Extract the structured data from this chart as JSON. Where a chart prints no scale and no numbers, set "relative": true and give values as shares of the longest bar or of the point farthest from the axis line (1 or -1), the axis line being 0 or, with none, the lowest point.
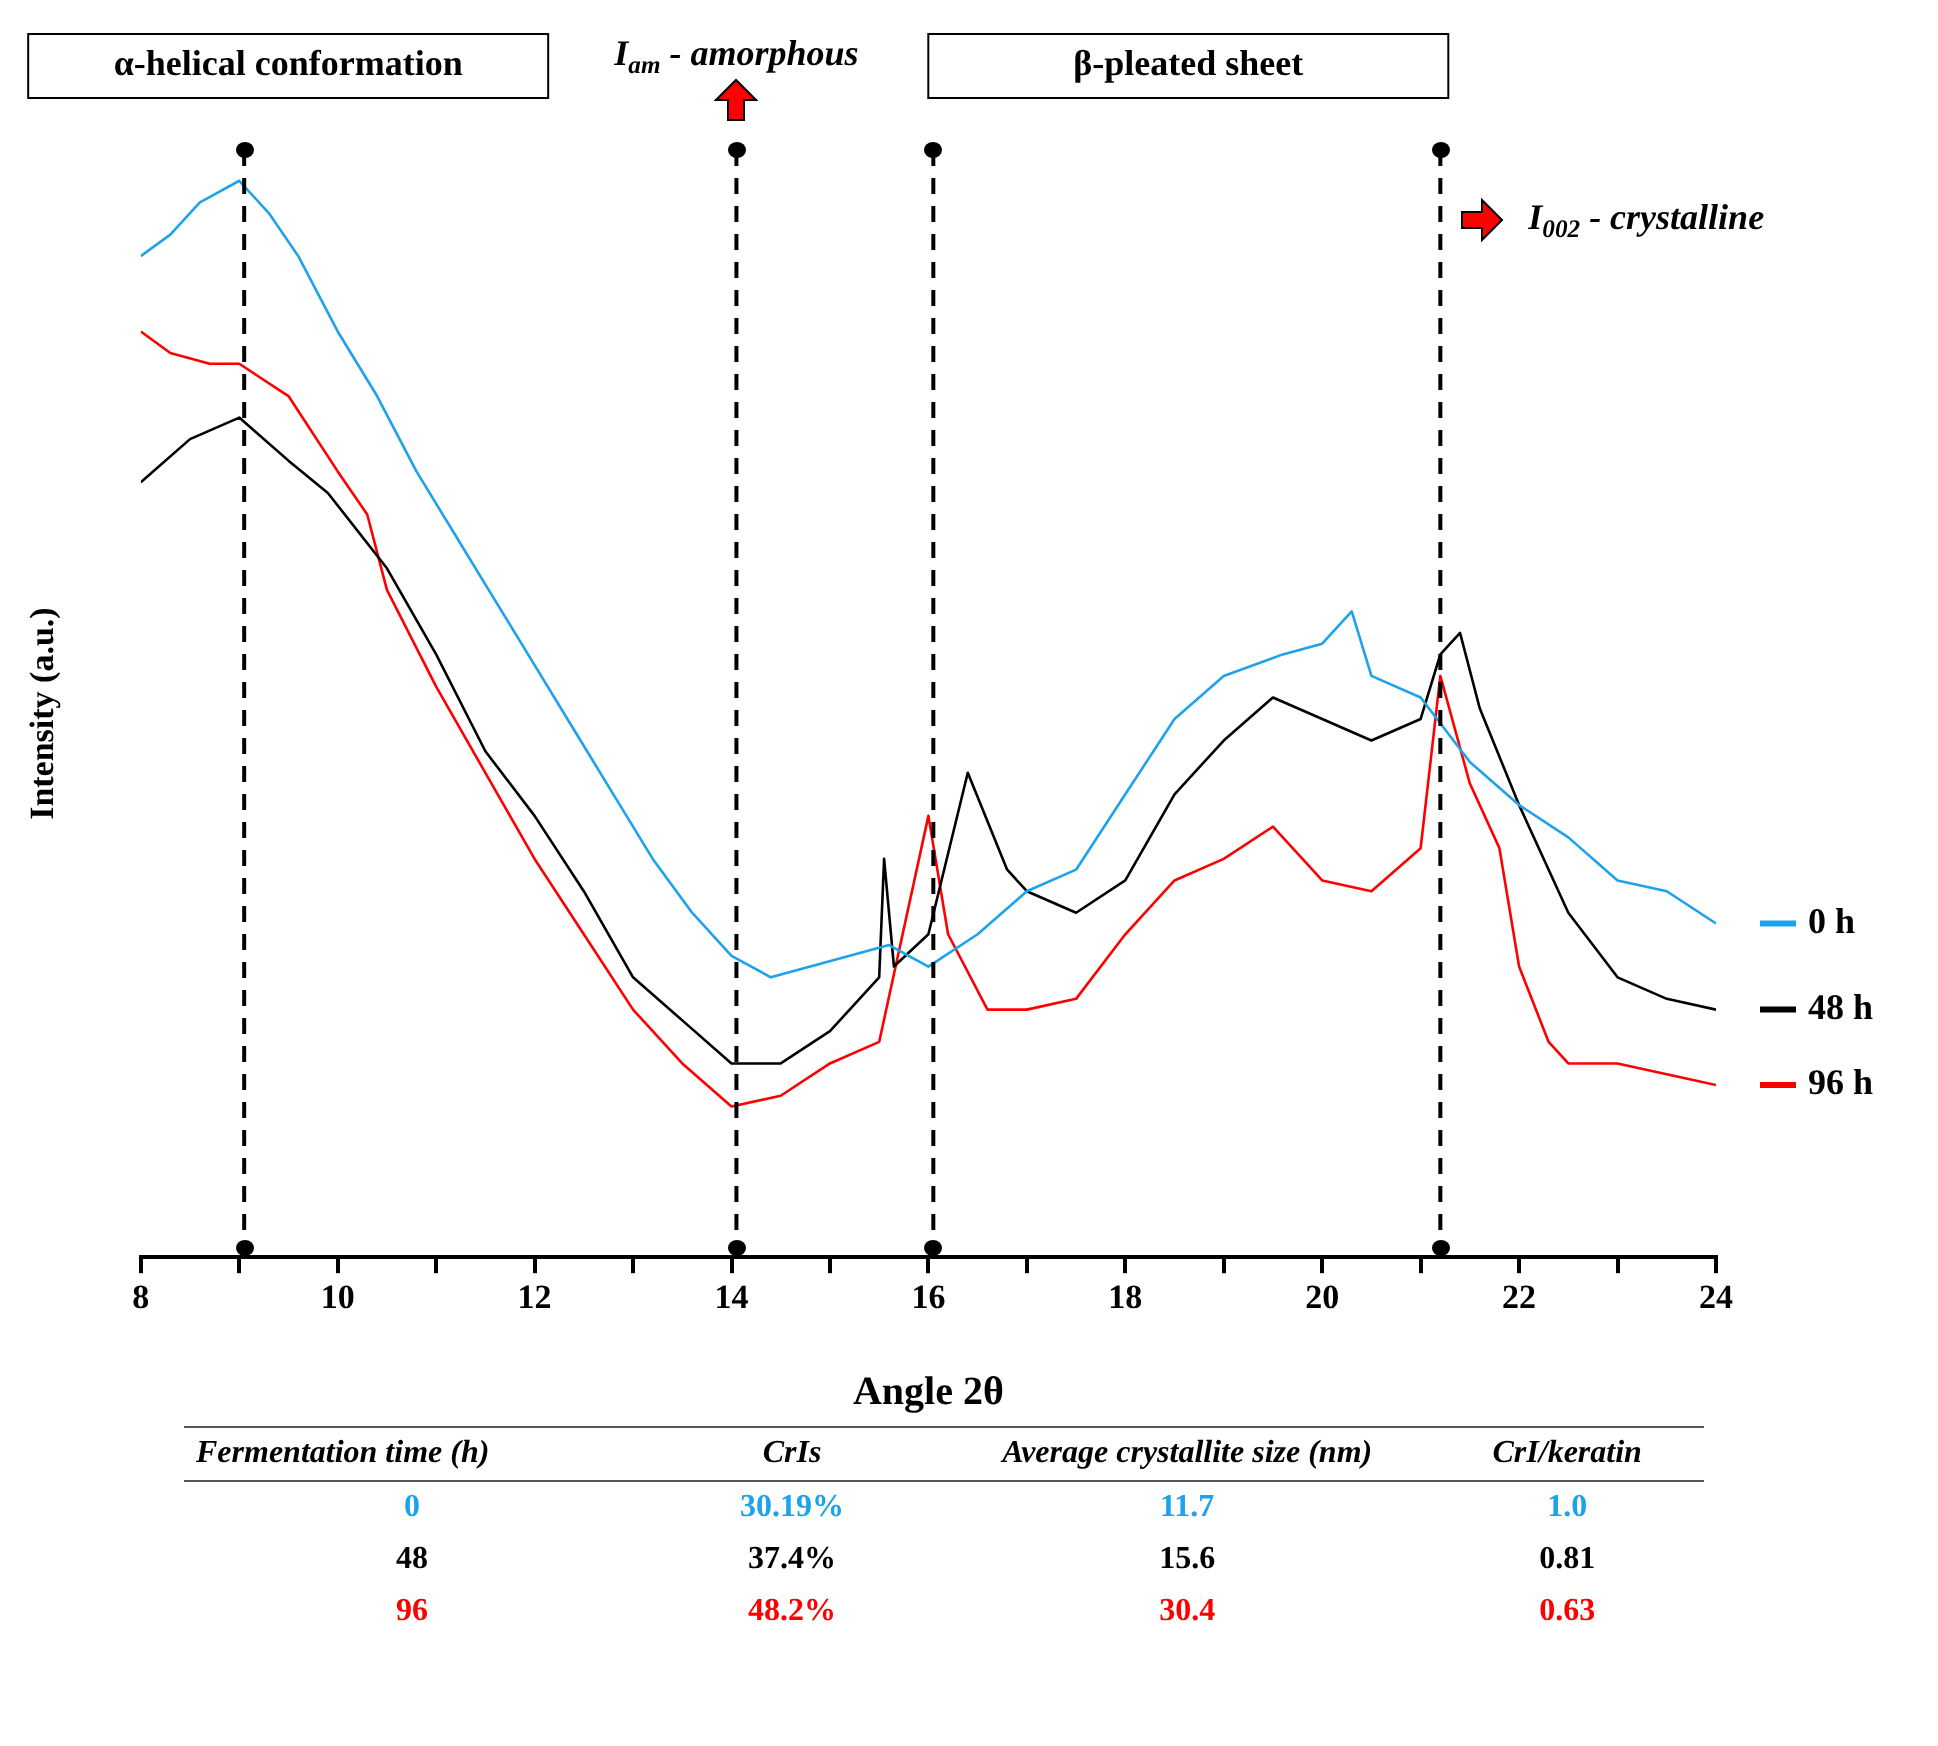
{
  "chart_data": [
    {
      "type": "line",
      "xlabel": "Angle 2θ",
      "ylabel": "Intensity (a.u.)",
      "relative": true,
      "xlim": [
        8,
        24
      ],
      "xticks": [
        8,
        {
          "value": 9,
          "label": null
        },
        10,
        {
          "value": 11,
          "label": null
        },
        12,
        {
          "value": 13,
          "label": null
        },
        14,
        {
          "value": 15,
          "label": null
        },
        16,
        {
          "value": 17,
          "label": null
        },
        18,
        {
          "value": 19,
          "label": null
        },
        20,
        {
          "value": 21,
          "label": null
        },
        22,
        {
          "value": 23,
          "label": null
        },
        24
      ],
      "legend": "right",
      "marker": "none",
      "line_style": "solid",
      "tick_labels": "x",
      "annotations": [
        "β-pleated sheet"
      ],
      "ref_lines": [
        {
          "axis": "x",
          "value": 9.05,
          "label": "α-helical conformation",
          "line_style": "dashed",
          "color": "#000000"
        },
        {
          "axis": "x",
          "value": 14.05,
          "label": "I$_{am}$ - amorphous",
          "line_style": "dashed",
          "color": "#000000"
        },
        {
          "axis": "x",
          "value": 16.05,
          "line_style": "dashed",
          "color": "#000000"
        },
        {
          "axis": "x",
          "value": 21.2,
          "label": "I$_{002}$ - crystalline",
          "line_style": "dashed",
          "color": "#000000"
        }
      ],
      "series": [
        {
          "name": "0 h",
          "color": "#1ca3ec",
          "x": [
            8,
            8.3,
            8.6,
            8.8,
            9,
            9.3,
            9.6,
            10,
            10.4,
            10.8,
            11.2,
            11.6,
            12,
            12.4,
            12.8,
            13.2,
            13.6,
            14,
            14.4,
            14.8,
            15.2,
            15.6,
            16,
            16.5,
            17,
            17.5,
            18,
            18.5,
            19,
            19.6,
            20,
            20.3,
            20.5,
            21,
            21.5,
            22,
            22.5,
            23,
            23.5,
            24
          ],
          "values": [
            0.93,
            0.95,
            0.98,
            0.99,
            1.0,
            0.97,
            0.93,
            0.86,
            0.8,
            0.73,
            0.67,
            0.61,
            0.55,
            0.49,
            0.43,
            0.37,
            0.32,
            0.28,
            0.26,
            0.27,
            0.28,
            0.29,
            0.27,
            0.3,
            0.34,
            0.36,
            0.43,
            0.5,
            0.54,
            0.56,
            0.57,
            0.6,
            0.54,
            0.52,
            0.46,
            0.42,
            0.39,
            0.35,
            0.34,
            0.31
          ]
        },
        {
          "name": "48 h",
          "color": "#000000",
          "x": [
            8,
            8.5,
            9,
            9.5,
            9.9,
            10.5,
            11,
            11.5,
            12,
            12.5,
            13,
            13.5,
            14,
            14.5,
            15,
            15.5,
            15.55,
            15.65,
            16,
            16.4,
            16.8,
            17,
            17.5,
            18,
            18.5,
            19,
            19.5,
            20,
            20.5,
            21,
            21.2,
            21.4,
            21.6,
            22,
            22.5,
            23,
            23.5,
            24
          ],
          "values": [
            0.72,
            0.76,
            0.78,
            0.74,
            0.71,
            0.64,
            0.56,
            0.47,
            0.41,
            0.34,
            0.26,
            0.22,
            0.18,
            0.18,
            0.21,
            0.26,
            0.37,
            0.27,
            0.3,
            0.45,
            0.36,
            0.34,
            0.32,
            0.35,
            0.43,
            0.48,
            0.52,
            0.5,
            0.48,
            0.5,
            0.56,
            0.58,
            0.51,
            0.42,
            0.32,
            0.26,
            0.24,
            0.23
          ]
        },
        {
          "name": "96 h",
          "color": "#ff0000",
          "x": [
            8,
            8.3,
            8.7,
            9,
            9.5,
            10,
            10.3,
            10.5,
            11,
            11.5,
            12,
            12.5,
            13,
            13.5,
            14,
            14.5,
            15,
            15.5,
            16,
            16.2,
            16.6,
            17,
            17.5,
            18,
            18.5,
            19,
            19.5,
            20,
            20.5,
            21,
            21.2,
            21.5,
            21.8,
            22,
            22.3,
            22.5,
            23,
            23.5,
            24
          ],
          "values": [
            0.86,
            0.84,
            0.83,
            0.83,
            0.8,
            0.73,
            0.69,
            0.62,
            0.53,
            0.45,
            0.37,
            0.3,
            0.23,
            0.18,
            0.14,
            0.15,
            0.18,
            0.2,
            0.41,
            0.3,
            0.23,
            0.23,
            0.24,
            0.3,
            0.35,
            0.37,
            0.4,
            0.35,
            0.34,
            0.38,
            0.54,
            0.44,
            0.38,
            0.27,
            0.2,
            0.18,
            0.18,
            0.17,
            0.16
          ]
        }
      ]
    },
    {
      "type": "other",
      "colors": [
        "#1ca3ec",
        "#000000",
        "#ff0000"
      ],
      "annotations": [
        "Fermentation time (h)",
        "CrIs",
        "Average crystallite size (nm)",
        "CrI/keratin",
        "0",
        "30.19%",
        "11.7",
        "1.0",
        "48",
        "37.4%",
        "15.6",
        "0.81",
        "96",
        "48.2%",
        "30.4",
        "0.63"
      ]
    }
  ]
}
